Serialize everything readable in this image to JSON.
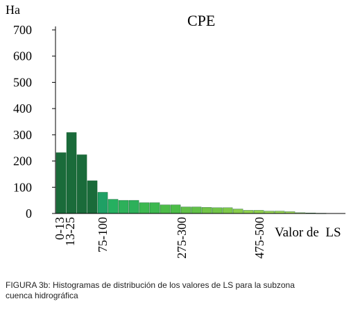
{
  "chart_data": {
    "type": "bar",
    "title": "CPE",
    "ylabel": "Ha",
    "xlabel": "Valor de  LS",
    "ylim": [
      0,
      700
    ],
    "yticks": [
      0,
      100,
      200,
      300,
      400,
      500,
      600,
      700
    ],
    "x_tick_labels": [
      "0-13",
      "13-25",
      "75-100",
      "275-300",
      "475-500"
    ],
    "values": [
      232,
      309,
      224,
      125,
      81,
      54,
      50,
      50,
      41,
      41,
      33,
      33,
      25,
      25,
      23,
      22,
      22,
      17,
      12,
      12,
      9,
      9,
      7,
      3,
      2,
      1,
      0
    ],
    "colors": [
      "#1a6b3a",
      "#1a6b3a",
      "#1a6b3a",
      "#1a6b3a",
      "#1fa065",
      "#25b060",
      "#2db05a",
      "#2db05a",
      "#3cb850",
      "#3cb850",
      "#4cbc48",
      "#4cbc48",
      "#62c048",
      "#62c048",
      "#72c448",
      "#72c448",
      "#7ec84a",
      "#88cc4c",
      "#8fd04e",
      "#8fd04e",
      "#98d455",
      "#98d455",
      "#a2d85e",
      "#b0dc70",
      "#c2e488",
      "#d0ec9e",
      "#dcf2b8"
    ],
    "grid": false,
    "legend": "none"
  },
  "caption": {
    "line1": "FIGURA 3b: Histogramas de distribución de los valores de LS para la subzona",
    "line2": "cuenca hidrográfica"
  }
}
